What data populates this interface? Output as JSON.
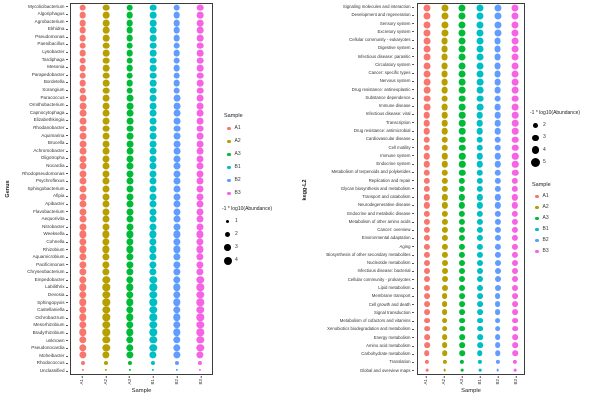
{
  "background": "#ffffff",
  "palette": {
    "A1": "#F8766D",
    "A2": "#B79F00",
    "A3": "#00BA38",
    "B1": "#00BFC4",
    "B2": "#619CFF",
    "B3": "#F564E2"
  },
  "chart_data": [
    {
      "type": "scatter",
      "subtype": "bubble-grid",
      "ylabel": "Genus",
      "xlabel": "Sample",
      "samples": [
        "A1",
        "A2",
        "A3",
        "B1",
        "B2",
        "B3"
      ],
      "grid": false,
      "legend_position": "right",
      "color_legend": {
        "title": "Sample",
        "entries": [
          "A1",
          "A2",
          "A3",
          "B1",
          "B2",
          "B3"
        ]
      },
      "size_legend": {
        "title": "-1 * log10(Abundance)",
        "values": [
          1,
          2,
          3,
          4
        ]
      },
      "dot_scale": 1.85,
      "legend_dot_base": 2,
      "legend_dot_scale": 1.5,
      "rows": [
        {
          "label": "Mycolicibacterium",
          "size": 3.6
        },
        {
          "label": "Algoriphagus",
          "size": 3.6
        },
        {
          "label": "Agrobacterium",
          "size": 3.6
        },
        {
          "label": "Ekhidna",
          "size": 3.6
        },
        {
          "label": "Pseudomonas",
          "size": 3.6
        },
        {
          "label": "Paenibacillus",
          "size": 3.6
        },
        {
          "label": "Lysobacter",
          "size": 3.6
        },
        {
          "label": "Tardiphaga",
          "size": 3.6
        },
        {
          "label": "Mesonia",
          "size": 3.6
        },
        {
          "label": "Parapedobacter",
          "size": 3.6
        },
        {
          "label": "Bordetella",
          "size": 3.6
        },
        {
          "label": "Sorangium",
          "size": 3.6
        },
        {
          "label": "Paracoccus",
          "size": 3.7
        },
        {
          "label": "Ornithobacterium",
          "size": 3.7
        },
        {
          "label": "Capnocytophaga",
          "size": 3.7
        },
        {
          "label": "Elizabethkingia",
          "size": 3.7
        },
        {
          "label": "Rhodanobacter",
          "size": 3.7
        },
        {
          "label": "Aquimarina",
          "size": 3.7
        },
        {
          "label": "Brucella",
          "size": 3.7
        },
        {
          "label": "Achromobacter",
          "size": 3.7
        },
        {
          "label": "Oligotropha",
          "size": 3.8
        },
        {
          "label": "Nocardia",
          "size": 3.8
        },
        {
          "label": "Rhodopseudomonas",
          "size": 3.8
        },
        {
          "label": "Psychroflexus",
          "size": 3.8
        },
        {
          "label": "Sphingobacterium",
          "size": 3.8
        },
        {
          "label": "Afipia",
          "size": 3.8
        },
        {
          "label": "Apibacter",
          "size": 3.8
        },
        {
          "label": "Flavobacterium",
          "size": 3.8
        },
        {
          "label": "Aequorivita",
          "size": 3.8
        },
        {
          "label": "Nitrobacter",
          "size": 3.8
        },
        {
          "label": "Weeksella",
          "size": 3.9
        },
        {
          "label": "Cohnella",
          "size": 3.9
        },
        {
          "label": "Rhizobium",
          "size": 3.9
        },
        {
          "label": "Aquamicrobium",
          "size": 3.9
        },
        {
          "label": "Pacificimonas",
          "size": 3.9
        },
        {
          "label": "Chryseobacterium",
          "size": 3.9
        },
        {
          "label": "Empedobacter",
          "size": 4.0
        },
        {
          "label": "Labilithrix",
          "size": 4.0
        },
        {
          "label": "Devosia",
          "size": 4.0
        },
        {
          "label": "Sphingopyxis",
          "size": 4.0
        },
        {
          "label": "Castellaniella",
          "size": 4.0
        },
        {
          "label": "Ochrobactrum",
          "size": 4.0
        },
        {
          "label": "Mesorhizobium",
          "size": 4.0
        },
        {
          "label": "Bradyrhizobium",
          "size": 4.0
        },
        {
          "label": "unknown",
          "size": 4.0
        },
        {
          "label": "Pseudonocardia",
          "size": 4.0
        },
        {
          "label": "Moheibacter",
          "size": 3.9
        },
        {
          "label": "Rhodococcus",
          "size": 2.2
        },
        {
          "label": "Unclassified",
          "size": 1.2
        }
      ]
    },
    {
      "type": "scatter",
      "subtype": "bubble-grid",
      "ylabel": "kegg-L2",
      "xlabel": "Sample",
      "samples": [
        "A1",
        "A2",
        "A3",
        "B1",
        "B2",
        "B3"
      ],
      "grid": false,
      "legend_position": "right",
      "color_legend": {
        "title": "Sample",
        "entries": [
          "A1",
          "A2",
          "A3",
          "B1",
          "B2",
          "B3"
        ]
      },
      "size_legend": {
        "title": "-1 * log10(Abundance)",
        "values": [
          2,
          3,
          4,
          5
        ]
      },
      "dot_scale": 1.5,
      "legend_dot_base": 2,
      "legend_dot_scale": 1.4,
      "rows": [
        {
          "label": "Signaling molecules and interaction",
          "size": 4.7
        },
        {
          "label": "Development and regeneration",
          "size": 4.7
        },
        {
          "label": "Sensory system",
          "size": 4.7
        },
        {
          "label": "Excretory system",
          "size": 4.7
        },
        {
          "label": "Cellular community - eukaryotes",
          "size": 4.6
        },
        {
          "label": "Digestive system",
          "size": 4.6
        },
        {
          "label": "Infectious disease: parasitic",
          "size": 4.6
        },
        {
          "label": "Circulatory system",
          "size": 4.6
        },
        {
          "label": "Cancer: specific types",
          "size": 4.6
        },
        {
          "label": "Nervous system",
          "size": 4.5
        },
        {
          "label": "Drug resistance: antineoplastic",
          "size": 4.5
        },
        {
          "label": "Substance dependence",
          "size": 4.5
        },
        {
          "label": "Immune disease",
          "size": 4.5
        },
        {
          "label": "Infectious disease: viral",
          "size": 4.4
        },
        {
          "label": "Transcription",
          "size": 4.4
        },
        {
          "label": "Drug resistance: antimicrobial",
          "size": 4.4
        },
        {
          "label": "Cardiovascular disease",
          "size": 4.4
        },
        {
          "label": "Cell motility",
          "size": 4.3
        },
        {
          "label": "Immune system",
          "size": 4.3
        },
        {
          "label": "Endocrine system",
          "size": 4.3
        },
        {
          "label": "Metabolism of terpenoids and polyketides",
          "size": 4.3
        },
        {
          "label": "Replication and repair",
          "size": 4.2
        },
        {
          "label": "Glycan biosynthesis and metabolism",
          "size": 4.2
        },
        {
          "label": "Transport and catabolism",
          "size": 4.2
        },
        {
          "label": "Neurodegenerative disease",
          "size": 4.2
        },
        {
          "label": "Endocrine and metabolic disease",
          "size": 4.2
        },
        {
          "label": "Metabolism of other amino acids",
          "size": 4.1
        },
        {
          "label": "Cancer: overview",
          "size": 4.1
        },
        {
          "label": "Environmental adaptation",
          "size": 4.1
        },
        {
          "label": "Aging",
          "size": 4.1
        },
        {
          "label": "Biosynthesis of other secondary metabolites",
          "size": 4.1
        },
        {
          "label": "Nucleotide metabolism",
          "size": 4.0
        },
        {
          "label": "Infectious disease: bacterial",
          "size": 4.0
        },
        {
          "label": "Cellular community - prokaryotes",
          "size": 4.0
        },
        {
          "label": "Lipid metabolism",
          "size": 4.0
        },
        {
          "label": "Membrane transport",
          "size": 3.9
        },
        {
          "label": "Cell growth and death",
          "size": 3.9
        },
        {
          "label": "Signal transduction",
          "size": 3.9
        },
        {
          "label": "Metabolism of cofactors and vitamins",
          "size": 3.9
        },
        {
          "label": "Xenobiotics biodegradation and metabolism",
          "size": 3.8
        },
        {
          "label": "Energy metabolism",
          "size": 3.8
        },
        {
          "label": "Amino acid metabolism",
          "size": 3.8
        },
        {
          "label": "Carbohydrate metabolism",
          "size": 3.7
        },
        {
          "label": "Translation",
          "size": 2.8
        },
        {
          "label": "Global and overview maps",
          "size": 1.8
        }
      ]
    }
  ]
}
